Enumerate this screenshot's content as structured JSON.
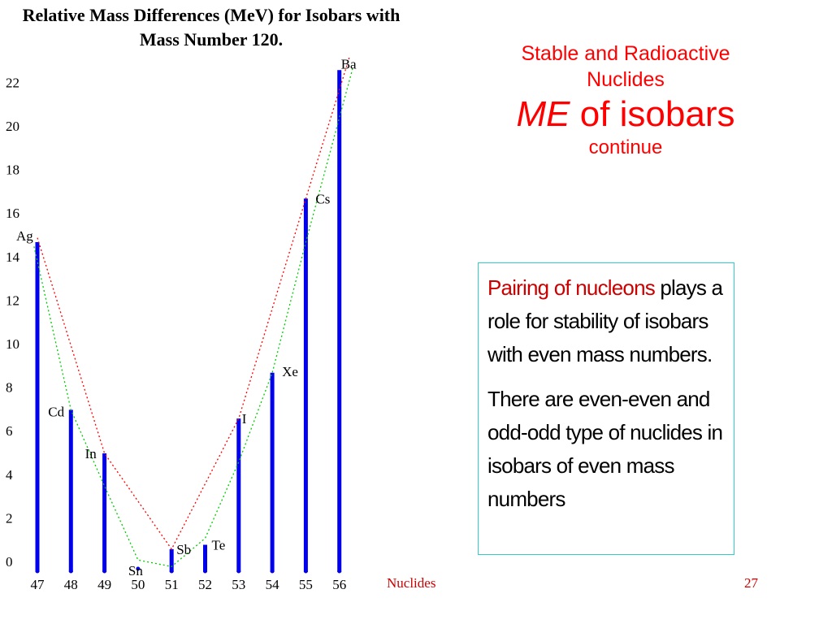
{
  "slide": {
    "title_line1": "Stable and Radioactive",
    "title_line2": "Nuclides",
    "title_me": "ME",
    "title_rest": " of isobars",
    "title_line4": "continue",
    "footer_label": "Nuclides",
    "page_number": "27",
    "accent_color": "#ff0000"
  },
  "info_box": {
    "highlight": "Pairing of nucleons",
    "text1": " plays a role for stability of isobars with even mass numbers.",
    "text2": "There are even-even and odd-odd type of nuclides in isobars of even mass numbers",
    "border_color": "#33cccc"
  },
  "chart_data": {
    "type": "bar",
    "title": "Relative Mass Differences (MeV) for Isobars with Mass Number 120.",
    "xlabel": "",
    "ylabel": "",
    "x": [
      47,
      48,
      49,
      50,
      51,
      52,
      53,
      54,
      55,
      56
    ],
    "elements": [
      "Ag",
      "Cd",
      "In",
      "Sn",
      "Sb",
      "Te",
      "I",
      "Xe",
      "Cs",
      "Ba"
    ],
    "values": [
      15.0,
      7.3,
      5.3,
      0.0,
      0.9,
      1.1,
      6.9,
      9.0,
      17.0,
      22.9
    ],
    "yticks": [
      0,
      2,
      4,
      6,
      8,
      10,
      12,
      14,
      16,
      18,
      20,
      22
    ],
    "ylim": [
      0,
      23
    ],
    "grid": false,
    "legend": "none",
    "bar_color": "#0000ee",
    "series": [
      {
        "kind": "curve",
        "color": "#ff0000",
        "style": "dotted",
        "x": [
          47,
          49,
          51,
          53,
          55,
          56.3
        ],
        "values": [
          15.2,
          5.3,
          0.9,
          6.9,
          17.0,
          23.5
        ]
      },
      {
        "kind": "curve",
        "color": "#00cc00",
        "style": "dotted",
        "x": [
          46.9,
          48,
          49,
          50,
          51,
          52,
          53,
          54,
          55,
          56.4
        ],
        "values": [
          14.8,
          7.3,
          3.8,
          0.4,
          0.1,
          1.4,
          4.9,
          9.0,
          15.0,
          23.0
        ]
      }
    ]
  }
}
